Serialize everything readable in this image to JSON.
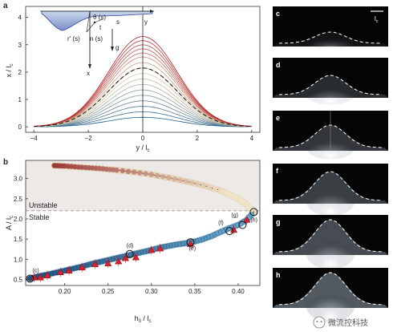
{
  "figure": {
    "panel_labels": {
      "a": "a",
      "b": "b"
    },
    "photo_panels": [
      {
        "label": "c",
        "amp": 0.28,
        "brightness": 0.12
      },
      {
        "label": "d",
        "amp": 0.48,
        "brightness": 0.3
      },
      {
        "label": "e",
        "amp": 0.56,
        "brightness": 0.38
      },
      {
        "label": "f",
        "amp": 0.72,
        "brightness": 0.45
      },
      {
        "label": "g",
        "amp": 0.8,
        "brightness": 0.55
      },
      {
        "label": "h",
        "amp": 0.8,
        "brightness": 0.65
      }
    ],
    "scale_bar_label": "l",
    "scale_bar_subscript": "c",
    "inset": {
      "x_label": "x",
      "y_label": "y",
      "theta_label": "θ (s)",
      "s_label": "s",
      "r_label": "r' (s)",
      "n_label": "n (s)",
      "g_label": "g",
      "t_label": "t"
    },
    "watermark": "微流控科技",
    "colors": {
      "stable_fill": "#ffffff",
      "unstable_fill": "#ece9e6",
      "stable_branch": "#2a6f9e",
      "unstable_branch": "#9b1c1f",
      "triangle": "#d8212f",
      "dashed": "#222222"
    }
  },
  "chart_data": [
    {
      "panel": "a",
      "type": "line",
      "xlabel": "y / l",
      "xlabel_sub": "c",
      "ylabel": "x / l",
      "ylabel_sub": "c",
      "xlim": [
        -4.3,
        4.3
      ],
      "ylim": [
        -0.2,
        4.4
      ],
      "xticks": [
        -4,
        -2,
        0,
        2,
        4
      ],
      "xtick_labels": [
        "−4",
        "−2",
        "0",
        "2",
        "4"
      ],
      "yticks": [
        0,
        1,
        2,
        3,
        4
      ],
      "ytick_labels": [
        "0",
        "1",
        "2",
        "3",
        "4"
      ],
      "curve_amplitudes": [
        0.35,
        0.55,
        0.75,
        0.95,
        1.15,
        1.35,
        1.55,
        1.75,
        1.95,
        2.15,
        2.35,
        2.55,
        2.7,
        2.85,
        3.0,
        3.15,
        3.3
      ],
      "dashed_profile_amplitude": 2.15
    },
    {
      "panel": "b",
      "type": "scatter",
      "xlabel": "h",
      "xlabel_sub": "0",
      "xlabel_rest": " / l",
      "xlabel_sub2": "c",
      "ylabel": "A / l",
      "ylabel_sub": "c",
      "xlim": [
        0.155,
        0.425
      ],
      "ylim": [
        0.35,
        3.45
      ],
      "xticks": [
        0.2,
        0.25,
        0.3,
        0.35,
        0.4
      ],
      "xtick_labels": [
        "0.20",
        "0.25",
        "0.30",
        "0.35",
        "0.40"
      ],
      "yticks": [
        0.5,
        1.0,
        1.5,
        2.0,
        2.5,
        3.0
      ],
      "ytick_labels": [
        "0.5",
        "1.0",
        "1.5",
        "2.0",
        "2.5",
        "3.0"
      ],
      "threshold": 2.2,
      "unstable_label": "Unstable",
      "stable_label": "Stable",
      "stable_branch": {
        "x": [
          0.16,
          0.17,
          0.18,
          0.19,
          0.2,
          0.21,
          0.22,
          0.23,
          0.24,
          0.25,
          0.26,
          0.27,
          0.28,
          0.29,
          0.3,
          0.31,
          0.32,
          0.33,
          0.34,
          0.35,
          0.36,
          0.37,
          0.38,
          0.39,
          0.4,
          0.41,
          0.418
        ],
        "y": [
          0.52,
          0.58,
          0.62,
          0.67,
          0.72,
          0.77,
          0.82,
          0.88,
          0.93,
          0.98,
          1.03,
          1.08,
          1.13,
          1.18,
          1.23,
          1.29,
          1.33,
          1.37,
          1.4,
          1.44,
          1.5,
          1.58,
          1.68,
          1.77,
          1.85,
          1.98,
          2.17
        ]
      },
      "unstable_branch": {
        "x": [
          0.188,
          0.2,
          0.22,
          0.24,
          0.26,
          0.28,
          0.3,
          0.32,
          0.34,
          0.36,
          0.38,
          0.39,
          0.4,
          0.41,
          0.418
        ],
        "y": [
          3.32,
          3.31,
          3.28,
          3.25,
          3.21,
          3.16,
          3.1,
          3.02,
          2.93,
          2.83,
          2.7,
          2.6,
          2.5,
          2.35,
          2.17
        ]
      },
      "triangles": {
        "x": [
          0.165,
          0.172,
          0.18,
          0.195,
          0.205,
          0.22,
          0.235,
          0.25,
          0.262,
          0.27,
          0.282,
          0.3,
          0.31,
          0.345,
          0.395,
          0.41
        ],
        "y": [
          0.55,
          0.55,
          0.6,
          0.68,
          0.72,
          0.8,
          0.88,
          0.9,
          0.95,
          1.03,
          1.05,
          1.23,
          1.27,
          1.38,
          1.73,
          1.98
        ]
      },
      "open_circles": {
        "labels": [
          "(c)",
          "(d)",
          "(e)",
          "(f)",
          "(g)",
          "(h)"
        ],
        "x": [
          0.16,
          0.275,
          0.345,
          0.39,
          0.405,
          0.418
        ],
        "y": [
          0.52,
          1.13,
          1.42,
          1.7,
          1.85,
          2.17
        ]
      }
    }
  ]
}
